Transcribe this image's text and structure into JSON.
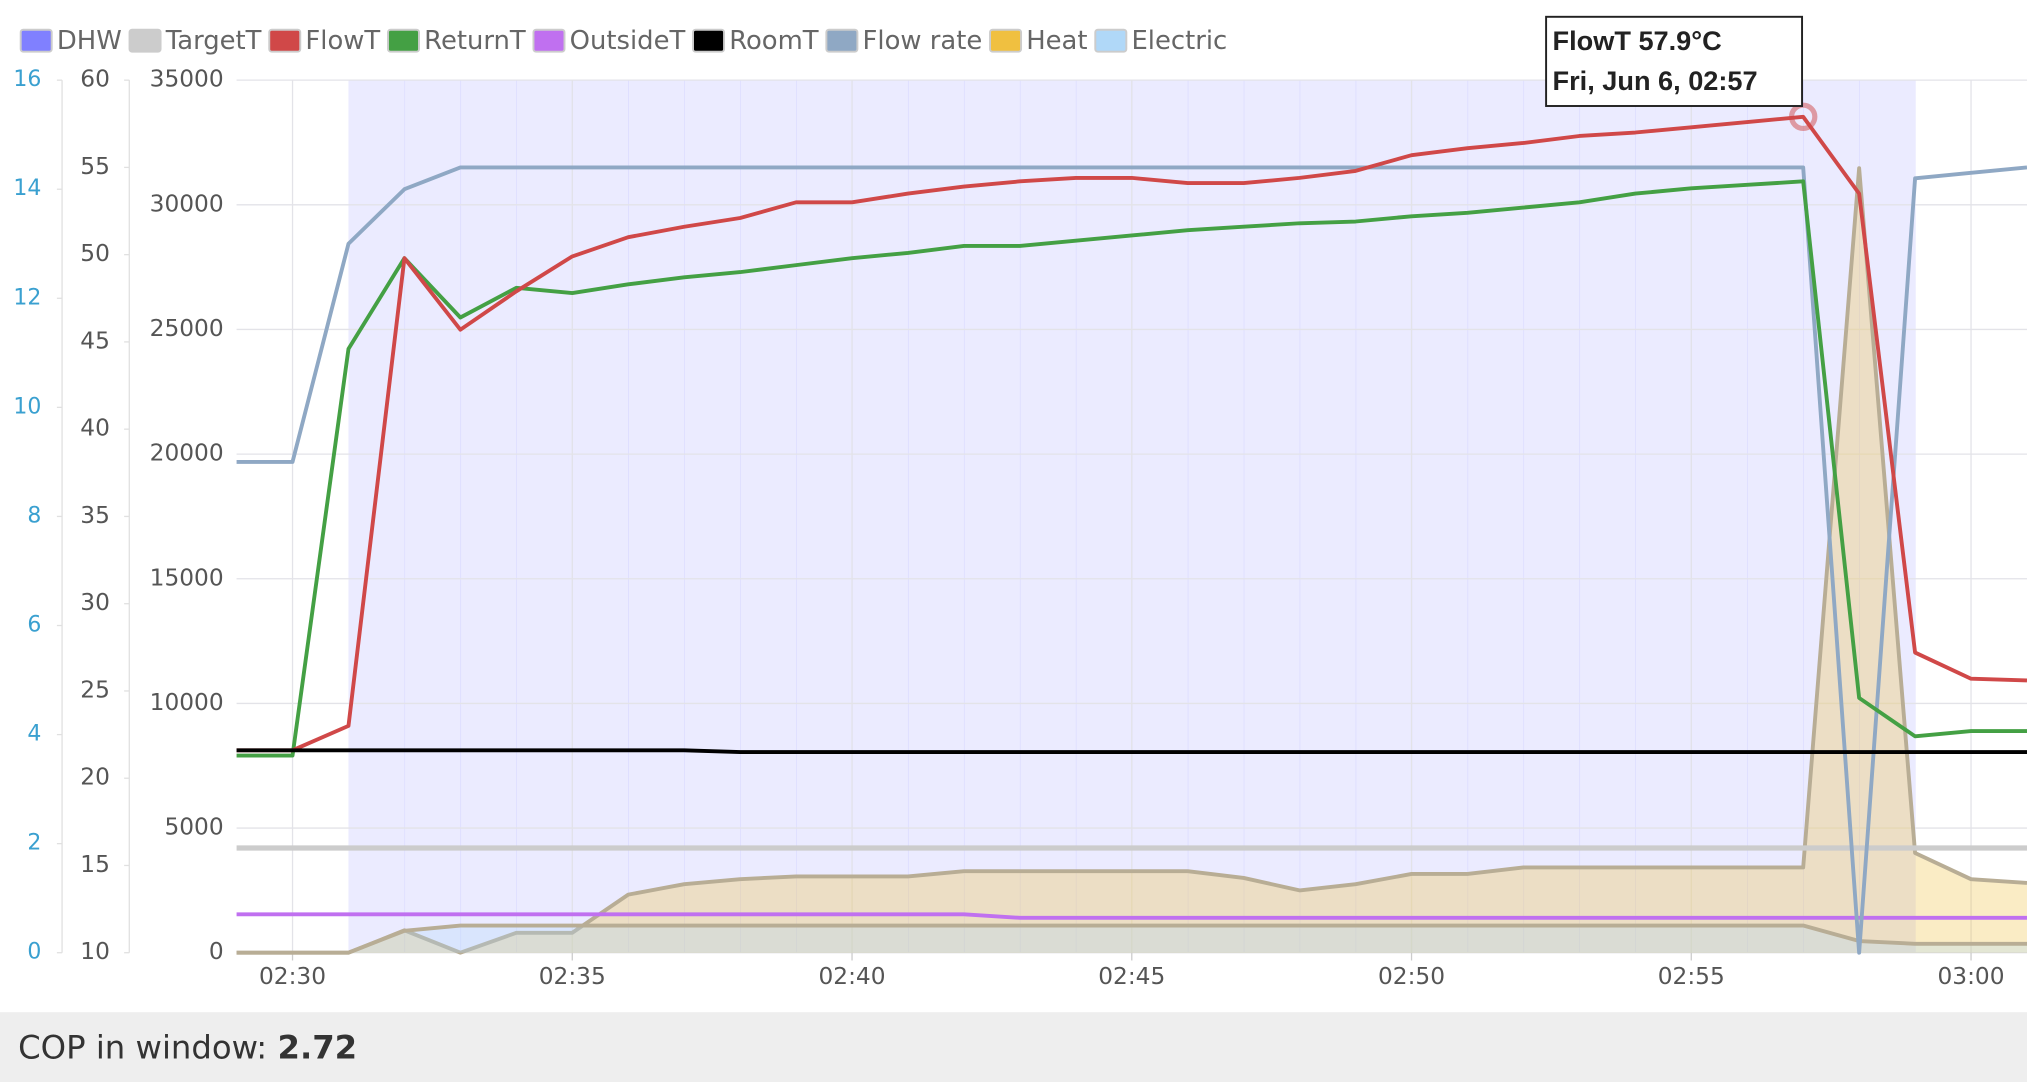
{
  "chart_data": {
    "type": "line",
    "x": [
      "02:29",
      "02:30",
      "02:31",
      "02:32",
      "02:33",
      "02:34",
      "02:35",
      "02:36",
      "02:37",
      "02:38",
      "02:39",
      "02:40",
      "02:41",
      "02:42",
      "02:43",
      "02:44",
      "02:45",
      "02:46",
      "02:47",
      "02:48",
      "02:49",
      "02:50",
      "02:51",
      "02:52",
      "02:53",
      "02:54",
      "02:55",
      "02:56",
      "02:57",
      "02:58",
      "02:59",
      "03:00",
      "03:01"
    ],
    "xlim": [
      "02:29",
      "03:01"
    ],
    "xticks": [
      "02:30",
      "02:35",
      "02:40",
      "02:45",
      "02:50",
      "02:55",
      "03:00"
    ],
    "ylim": [
      0,
      35000
    ],
    "yticks": [
      0,
      5000,
      10000,
      15000,
      20000,
      25000,
      30000,
      35000
    ],
    "y2lim": [
      10,
      60
    ],
    "y2ticks": [
      10,
      15,
      20,
      25,
      30,
      35,
      40,
      45,
      50,
      55,
      60
    ],
    "y3lim": [
      0,
      16
    ],
    "y3ticks": [
      0,
      2,
      4,
      6,
      8,
      10,
      12,
      14,
      16
    ],
    "grid": true,
    "series": [
      {
        "name": "DHW",
        "color": "#8080ff",
        "axis": "band",
        "values": [
          0,
          0,
          1,
          1,
          1,
          1,
          1,
          1,
          1,
          1,
          1,
          1,
          1,
          1,
          1,
          1,
          1,
          1,
          1,
          1,
          1,
          1,
          1,
          1,
          1,
          1,
          1,
          1,
          1,
          1,
          0,
          0,
          0
        ]
      },
      {
        "name": "TargetT",
        "color": "#cccccc",
        "axis": "y2",
        "values": [
          16,
          16,
          16,
          16,
          16,
          16,
          16,
          16,
          16,
          16,
          16,
          16,
          16,
          16,
          16,
          16,
          16,
          16,
          16,
          16,
          16,
          16,
          16,
          16,
          16,
          16,
          16,
          16,
          16,
          16,
          16,
          16,
          16
        ]
      },
      {
        "name": "FlowT",
        "color": "#d04848",
        "axis": "y2",
        "values": [
          21.6,
          21.6,
          23,
          49.8,
          45.7,
          47.9,
          49.9,
          51,
          51.6,
          52.1,
          53,
          53,
          53.5,
          53.9,
          54.2,
          54.4,
          54.4,
          54.1,
          54.1,
          54.4,
          54.8,
          55.7,
          56.1,
          56.4,
          56.8,
          57,
          57.3,
          57.6,
          57.9,
          53.5,
          27.2,
          25.7,
          25.6
        ]
      },
      {
        "name": "ReturnT",
        "color": "#44a044",
        "axis": "y2",
        "values": [
          21.3,
          21.3,
          44.6,
          49.8,
          46.4,
          48.1,
          47.8,
          48.3,
          48.7,
          49,
          49.4,
          49.8,
          50.1,
          50.5,
          50.5,
          50.8,
          51.1,
          51.4,
          51.6,
          51.8,
          51.9,
          52.2,
          52.4,
          52.7,
          53,
          53.5,
          53.8,
          54,
          54.2,
          24.6,
          22.4,
          22.7,
          22.7
        ]
      },
      {
        "name": "OutsideT",
        "color": "#c070f0",
        "axis": "y2",
        "values": [
          12.2,
          12.2,
          12.2,
          12.2,
          12.2,
          12.2,
          12.2,
          12.2,
          12.2,
          12.2,
          12.2,
          12.2,
          12.2,
          12.2,
          12,
          12,
          12,
          12,
          12,
          12,
          12,
          12,
          12,
          12,
          12,
          12,
          12,
          12,
          12,
          12,
          12,
          12,
          12
        ]
      },
      {
        "name": "RoomT",
        "color": "#000000",
        "axis": "y2",
        "values": [
          21.6,
          21.6,
          21.6,
          21.6,
          21.6,
          21.6,
          21.6,
          21.6,
          21.6,
          21.5,
          21.5,
          21.5,
          21.5,
          21.5,
          21.5,
          21.5,
          21.5,
          21.5,
          21.5,
          21.5,
          21.5,
          21.5,
          21.5,
          21.5,
          21.5,
          21.5,
          21.5,
          21.5,
          21.5,
          21.5,
          21.5,
          21.5,
          21.5
        ]
      },
      {
        "name": "Flow rate",
        "color": "#8fa8c4",
        "axis": "y3",
        "values": [
          9,
          9,
          13,
          14,
          14.4,
          14.4,
          14.4,
          14.4,
          14.4,
          14.4,
          14.4,
          14.4,
          14.4,
          14.4,
          14.4,
          14.4,
          14.4,
          14.4,
          14.4,
          14.4,
          14.4,
          14.4,
          14.4,
          14.4,
          14.4,
          14.4,
          14.4,
          14.4,
          14.4,
          0,
          14.2,
          14.3,
          14.4
        ]
      },
      {
        "name": "Heat",
        "color": "#f0c040",
        "axis": "y",
        "values": [
          0,
          0,
          0,
          900,
          0,
          800,
          800,
          2330,
          2750,
          2950,
          3060,
          3060,
          3060,
          3270,
          3270,
          3270,
          3270,
          3270,
          3000,
          2500,
          2750,
          3160,
          3160,
          3420,
          3420,
          3420,
          3420,
          3420,
          3420,
          31470,
          4000,
          2950,
          2800
        ]
      },
      {
        "name": "Electric",
        "color": "#b0d8f8",
        "axis": "y",
        "values": [
          0,
          0,
          0,
          880,
          1090,
          1090,
          1090,
          1090,
          1090,
          1090,
          1090,
          1090,
          1090,
          1090,
          1090,
          1090,
          1090,
          1090,
          1090,
          1090,
          1090,
          1090,
          1090,
          1090,
          1090,
          1090,
          1090,
          1090,
          1090,
          470,
          360,
          360,
          360
        ]
      }
    ],
    "tooltip": {
      "title": "FlowT 57.9°C",
      "subtitle": "Fri, Jun 6, 02:57"
    },
    "cop": {
      "label": "COP in window:",
      "value": 2.72
    }
  }
}
